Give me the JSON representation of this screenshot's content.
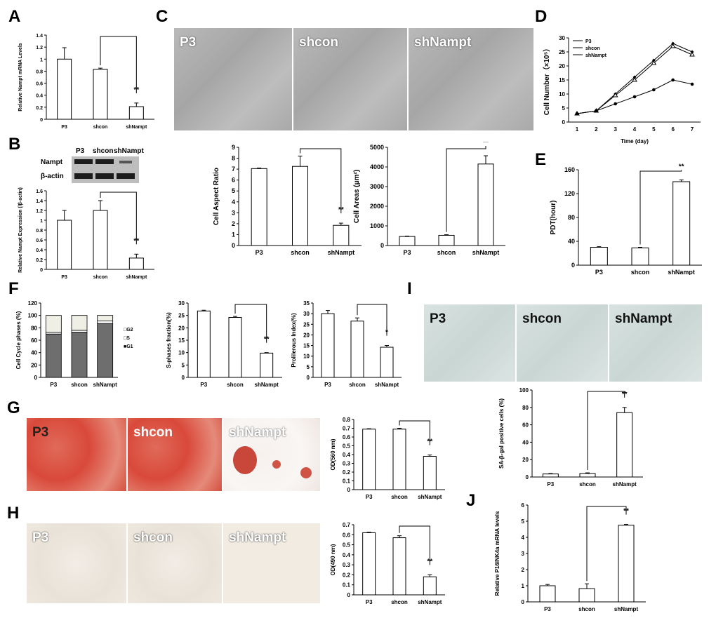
{
  "panel_letters": {
    "A": "A",
    "B": "B",
    "C": "C",
    "D": "D",
    "E": "E",
    "F": "F",
    "G": "G",
    "H": "H",
    "I": "I",
    "J": "J"
  },
  "groups": [
    "P3",
    "shcon",
    "shNampt"
  ],
  "blot": {
    "lanes": [
      "P3",
      "shcon",
      "shNampt"
    ],
    "rows": [
      "Nampt",
      "β-actin"
    ]
  },
  "images": {
    "C": [
      "P3",
      "shcon",
      "shNampt"
    ],
    "G": [
      "P3",
      "shcon",
      "shNampt"
    ],
    "H": [
      "P3",
      "shcon",
      "shNampt"
    ],
    "I": [
      "P3",
      "shcon",
      "shNampt"
    ]
  },
  "chart_data": [
    {
      "id": "A",
      "type": "bar",
      "categories": [
        "P3",
        "shcon",
        "shNampt"
      ],
      "values": [
        1.0,
        0.83,
        0.21
      ],
      "errors": [
        0.19,
        0.02,
        0.06
      ],
      "ylabel": "Relative Nampt mRNA Levels",
      "ylim": [
        0,
        1.4
      ],
      "yticks": [
        "0",
        "0.2",
        "0.4",
        "0.6",
        "0.8",
        "1",
        "1.2",
        "1.4"
      ],
      "significance": "**",
      "bracket": [
        1,
        2
      ]
    },
    {
      "id": "B",
      "type": "bar",
      "categories": [
        "P3",
        "shcon",
        "shNampt"
      ],
      "values": [
        1.0,
        1.2,
        0.23
      ],
      "errors": [
        0.2,
        0.2,
        0.08
      ],
      "ylabel": "Relative Nampt Expression (/β-actin)",
      "ylim": [
        0,
        1.6
      ],
      "yticks": [
        "0",
        "0.2",
        "0.4",
        "0.6",
        "0.8",
        "1",
        "1.2",
        "1.4",
        "1.6"
      ],
      "significance": "**",
      "bracket": [
        1,
        2
      ]
    },
    {
      "id": "C1",
      "type": "bar",
      "categories": [
        "P3",
        "shcon",
        "shNampt"
      ],
      "values": [
        7.05,
        7.25,
        1.85
      ],
      "errors": [
        0.05,
        0.95,
        0.2
      ],
      "ylabel": "Cell Aspect Ratio",
      "ylim": [
        0,
        9
      ],
      "yticks": [
        "0",
        "1",
        "2",
        "3",
        "4",
        "5",
        "6",
        "7",
        "8",
        "9"
      ],
      "significance": "**",
      "bracket": [
        1,
        2
      ]
    },
    {
      "id": "C2",
      "type": "bar",
      "categories": [
        "P3",
        "shcon",
        "shNampt"
      ],
      "values": [
        460,
        520,
        4150
      ],
      "errors": [
        20,
        30,
        420
      ],
      "ylabel": "Cell Areas (μm²)",
      "ylim": [
        0,
        5000
      ],
      "yticks": [
        "0",
        "1000",
        "2000",
        "3000",
        "4000",
        "5000"
      ],
      "significance": "**",
      "bracket": [
        1,
        2
      ]
    },
    {
      "id": "D",
      "type": "line",
      "x": [
        1,
        2,
        3,
        4,
        5,
        6,
        7
      ],
      "xticks": [
        "1",
        "2",
        "3",
        "4",
        "5",
        "6",
        "7"
      ],
      "series": [
        {
          "name": "P3",
          "values": [
            3,
            4,
            10,
            16,
            22,
            28,
            25
          ]
        },
        {
          "name": "shcon",
          "values": [
            3,
            4,
            9.5,
            15,
            21,
            27,
            24
          ]
        },
        {
          "name": "shNampt",
          "values": [
            3,
            4,
            6.5,
            9,
            11.5,
            15,
            13.5
          ]
        }
      ],
      "ylabel": "Cell Number（×10⁵）",
      "xlabel": "Time (day)",
      "ylim": [
        0,
        30
      ],
      "yticks": [
        "0",
        "5",
        "10",
        "15",
        "20",
        "25",
        "30"
      ],
      "legend": "top-left"
    },
    {
      "id": "E",
      "type": "bar",
      "categories": [
        "P3",
        "shcon",
        "shNampt"
      ],
      "values": [
        30,
        29,
        140
      ],
      "errors": [
        1,
        1,
        3
      ],
      "ylabel": "PDT(hour)",
      "ylim": [
        0,
        160
      ],
      "yticks": [
        "0",
        "40",
        "80",
        "120",
        "160"
      ],
      "significance": "**",
      "bracket": [
        1,
        2
      ]
    },
    {
      "id": "F1",
      "type": "bar",
      "stacked": true,
      "categories": [
        "P3",
        "shcon",
        "shNampt"
      ],
      "series": [
        {
          "name": "G1",
          "values": [
            70,
            73,
            87
          ]
        },
        {
          "name": "S",
          "values": [
            3,
            3,
            4
          ]
        },
        {
          "name": "G2",
          "values": [
            27,
            24,
            9
          ]
        }
      ],
      "ylabel": "Cell Cycle phases (%)",
      "ylim": [
        0,
        120
      ],
      "yticks": [
        "0",
        "20",
        "40",
        "60",
        "80",
        "100",
        "120"
      ],
      "legend_labels": [
        "□G2",
        "□S",
        "■G1"
      ],
      "legend": "right"
    },
    {
      "id": "F2",
      "type": "bar",
      "categories": [
        "P3",
        "shcon",
        "shNampt"
      ],
      "values": [
        26.8,
        24.2,
        9.8
      ],
      "errors": [
        0.3,
        0.4,
        0.2
      ],
      "ylabel": "S-phases fraction(%)",
      "ylim": [
        0,
        30
      ],
      "yticks": [
        "0",
        "5",
        "10",
        "15",
        "20",
        "25",
        "30"
      ],
      "significance": "**",
      "bracket": [
        1,
        2
      ]
    },
    {
      "id": "F3",
      "type": "bar",
      "categories": [
        "P3",
        "shcon",
        "shNampt"
      ],
      "values": [
        30,
        26.5,
        14.2
      ],
      "errors": [
        1.5,
        1.5,
        0.8
      ],
      "ylabel": "Prolilerous Index(%)",
      "ylim": [
        0,
        35
      ],
      "yticks": [
        "0",
        "5",
        "10",
        "15",
        "20",
        "25",
        "30",
        "35"
      ],
      "significance": "*",
      "bracket": [
        1,
        2
      ]
    },
    {
      "id": "G",
      "type": "bar",
      "categories": [
        "P3",
        "shcon",
        "shNampt"
      ],
      "values": [
        0.69,
        0.69,
        0.38
      ],
      "errors": [
        0.005,
        0.01,
        0.015
      ],
      "ylabel": "OD(560 nm)",
      "ylim": [
        0,
        0.8
      ],
      "yticks": [
        "0",
        "0.1",
        "0.2",
        "0.3",
        "0.4",
        "0.5",
        "0.6",
        "0.7",
        "0.8"
      ],
      "significance": "**",
      "bracket": [
        1,
        2
      ]
    },
    {
      "id": "H",
      "type": "bar",
      "categories": [
        "P3",
        "shcon",
        "shNampt"
      ],
      "values": [
        0.62,
        0.57,
        0.18
      ],
      "errors": [
        0.005,
        0.02,
        0.02
      ],
      "ylabel": "OD(490 nm)",
      "ylim": [
        0,
        0.7
      ],
      "yticks": [
        "0",
        "0.1",
        "0.2",
        "0.3",
        "0.4",
        "0.5",
        "0.6",
        "0.7"
      ],
      "significance": "**",
      "bracket": [
        1,
        2
      ]
    },
    {
      "id": "I",
      "type": "bar",
      "categories": [
        "P3",
        "shcon",
        "shNampt"
      ],
      "values": [
        3.5,
        4,
        74
      ],
      "errors": [
        0.5,
        0.8,
        6
      ],
      "ylabel": "SA-β-gal positive cells (%)",
      "ylim": [
        0,
        100
      ],
      "yticks": [
        "0",
        "20",
        "40",
        "60",
        "80",
        "100"
      ],
      "significance": "**",
      "bracket": [
        1,
        2
      ]
    },
    {
      "id": "J",
      "type": "bar",
      "categories": [
        "P3",
        "shcon",
        "shNampt"
      ],
      "values": [
        1.0,
        0.82,
        4.75
      ],
      "errors": [
        0.08,
        0.3,
        0.05
      ],
      "ylabel": "Relative P16INK4a mRNA levels",
      "ylim": [
        0,
        6
      ],
      "yticks": [
        "0",
        "1",
        "2",
        "3",
        "4",
        "5",
        "6"
      ],
      "significance": "**",
      "bracket": [
        1,
        2
      ]
    }
  ]
}
